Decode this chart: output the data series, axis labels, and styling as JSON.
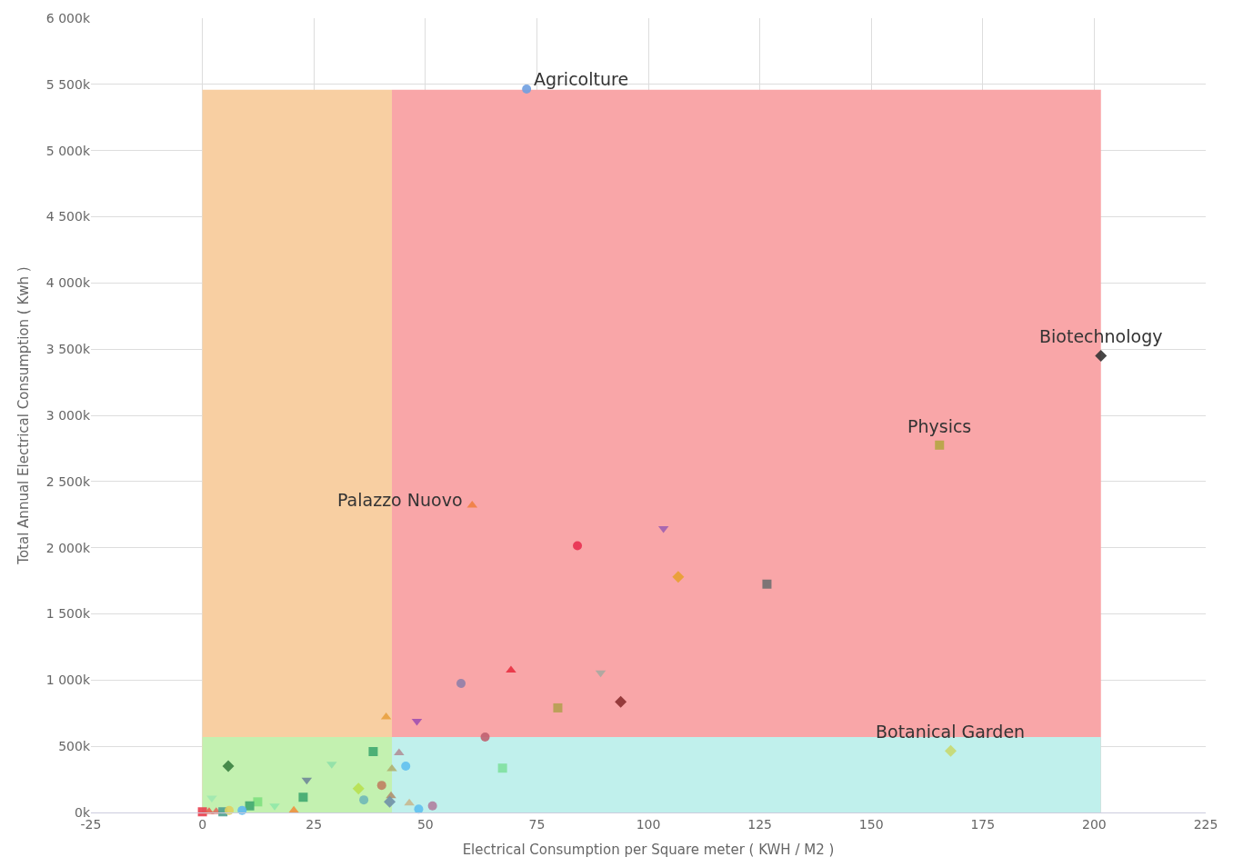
{
  "chart_data": {
    "type": "scatter",
    "xlabel": "Electrical Consumption per Square meter ( KWH / M2 )",
    "ylabel": "Total Annual Electrical Consumption ( Kwh )",
    "xlim": [
      -25,
      225
    ],
    "xticks": [
      -25,
      0,
      25,
      50,
      75,
      100,
      125,
      150,
      175,
      200,
      225
    ],
    "ylim": [
      0,
      6000
    ],
    "yticks": [
      {
        "value": 0,
        "label": "0k"
      },
      {
        "value": 500,
        "label": "500k"
      },
      {
        "value": 1000,
        "label": "1 000k"
      },
      {
        "value": 1500,
        "label": "1 500k"
      },
      {
        "value": 2000,
        "label": "2 000k"
      },
      {
        "value": 2500,
        "label": "2 500k"
      },
      {
        "value": 3000,
        "label": "3 000k"
      },
      {
        "value": 3500,
        "label": "3 500k"
      },
      {
        "value": 4000,
        "label": "4 000k"
      },
      {
        "value": 4500,
        "label": "4 500k"
      },
      {
        "value": 5000,
        "label": "5 000k"
      },
      {
        "value": 5500,
        "label": "5 500k"
      },
      {
        "value": 6000,
        "label": "6 000k"
      }
    ],
    "grid": true,
    "annotations": [
      {
        "text": "Agricolture",
        "x": 72.7,
        "y": 5465
      },
      {
        "text": "Biotechnology",
        "x": 201.5,
        "y": 3450
      },
      {
        "text": "Physics",
        "x": 165.3,
        "y": 2775
      },
      {
        "text": "Palazzo Nuovo",
        "x": 60.5,
        "y": 2320
      },
      {
        "text": "Botanical Garden",
        "x": 167.8,
        "y": 465
      }
    ],
    "series": [
      {
        "type": "area",
        "x": [
          0,
          42.5
        ],
        "values": [
          5460,
          5460
        ],
        "color": "#f8cfa2"
      },
      {
        "type": "area",
        "x": [
          42.5,
          201.5
        ],
        "values": [
          5460,
          5460
        ],
        "color": "#f9a6a8"
      },
      {
        "type": "area",
        "x": [
          0,
          42.5
        ],
        "values": [
          570,
          570
        ],
        "color": "#c3f1b0"
      },
      {
        "type": "area",
        "x": [
          42.5,
          201.5
        ],
        "values": [
          570,
          570
        ],
        "color": "#c0f0ec"
      },
      {
        "x": [
          72.7
        ],
        "values": [
          5465
        ],
        "color": "#6f9fe0",
        "marker": "circle"
      },
      {
        "x": [
          201.5
        ],
        "values": [
          3450
        ],
        "color": "#333333",
        "marker": "diamond"
      },
      {
        "x": [
          165.3
        ],
        "values": [
          2775
        ],
        "color": "#b5a642",
        "marker": "square"
      },
      {
        "x": [
          60.5
        ],
        "values": [
          2320
        ],
        "color": "#f08040",
        "marker": "triangle"
      },
      {
        "x": [
          167.8
        ],
        "values": [
          465
        ],
        "color": "#c8d870",
        "marker": "diamond"
      },
      {
        "x": [
          103.4
        ],
        "values": [
          2145
        ],
        "color": "#a060b0",
        "marker": "triangle-down"
      },
      {
        "x": [
          84.1
        ],
        "values": [
          2015
        ],
        "color": "#e83050",
        "marker": "circle"
      },
      {
        "x": [
          106.7
        ],
        "values": [
          1780
        ],
        "color": "#e8a030",
        "marker": "diamond"
      },
      {
        "x": [
          126.6
        ],
        "values": [
          1725
        ],
        "color": "#707070",
        "marker": "square"
      },
      {
        "x": [
          69.2
        ],
        "values": [
          1075
        ],
        "color": "#e83040",
        "marker": "triangle"
      },
      {
        "x": [
          89.3
        ],
        "values": [
          1055
        ],
        "color": "#a8a8a0",
        "marker": "triangle-down"
      },
      {
        "x": [
          58.0
        ],
        "values": [
          975
        ],
        "color": "#9080a8",
        "marker": "circle"
      },
      {
        "x": [
          93.8
        ],
        "values": [
          835
        ],
        "color": "#8b3030",
        "marker": "diamond"
      },
      {
        "x": [
          79.7
        ],
        "values": [
          790
        ],
        "color": "#b5a050",
        "marker": "square"
      },
      {
        "x": [
          41.2
        ],
        "values": [
          720
        ],
        "color": "#e8a040",
        "marker": "triangle"
      },
      {
        "x": [
          48.1
        ],
        "values": [
          690
        ],
        "color": "#a050b0",
        "marker": "triangle-down"
      },
      {
        "x": [
          63.4
        ],
        "values": [
          570
        ],
        "color": "#c06070",
        "marker": "circle"
      },
      {
        "x": [
          67.3
        ],
        "values": [
          335
        ],
        "color": "#80e0a0",
        "marker": "square"
      },
      {
        "x": [
          38.3
        ],
        "values": [
          460
        ],
        "color": "#40a870",
        "marker": "square"
      },
      {
        "x": [
          44.1
        ],
        "values": [
          450
        ],
        "color": "#b09098",
        "marker": "triangle"
      },
      {
        "x": [
          42.5
        ],
        "values": [
          330
        ],
        "color": "#b0b070",
        "marker": "triangle"
      },
      {
        "x": [
          45.6
        ],
        "values": [
          350
        ],
        "color": "#60c0f0",
        "marker": "circle"
      },
      {
        "x": [
          5.8
        ],
        "values": [
          350
        ],
        "color": "#3a8040",
        "marker": "diamond"
      },
      {
        "x": [
          29.0
        ],
        "values": [
          365
        ],
        "color": "#90e0a8",
        "marker": "triangle-down"
      },
      {
        "x": [
          23.4
        ],
        "values": [
          245
        ],
        "color": "#708898",
        "marker": "triangle-down"
      },
      {
        "x": [
          35.0
        ],
        "values": [
          180
        ],
        "color": "#b8e050",
        "marker": "diamond"
      },
      {
        "x": [
          40.2
        ],
        "values": [
          205
        ],
        "color": "#c08060",
        "marker": "circle"
      },
      {
        "x": [
          22.6
        ],
        "values": [
          115
        ],
        "color": "#40a870",
        "marker": "square"
      },
      {
        "x": [
          36.2
        ],
        "values": [
          95
        ],
        "color": "#70b8b8",
        "marker": "circle"
      },
      {
        "x": [
          42.3
        ],
        "values": [
          125
        ],
        "color": "#b09070",
        "marker": "triangle"
      },
      {
        "x": [
          42.0
        ],
        "values": [
          80
        ],
        "color": "#7090a8",
        "marker": "diamond"
      },
      {
        "x": [
          46.4
        ],
        "values": [
          70
        ],
        "color": "#c8b890",
        "marker": "triangle"
      },
      {
        "x": [
          48.5
        ],
        "values": [
          25
        ],
        "color": "#60c0f0",
        "marker": "circle"
      },
      {
        "x": [
          51.6
        ],
        "values": [
          50
        ],
        "color": "#b080a0",
        "marker": "circle"
      },
      {
        "x": [
          20.5
        ],
        "values": [
          15
        ],
        "color": "#f09040",
        "marker": "triangle"
      },
      {
        "x": [
          16.2
        ],
        "values": [
          50
        ],
        "color": "#90e8a8",
        "marker": "triangle-down"
      },
      {
        "x": [
          12.4
        ],
        "values": [
          80
        ],
        "color": "#80e080",
        "marker": "square"
      },
      {
        "x": [
          10.6
        ],
        "values": [
          50
        ],
        "color": "#40a870",
        "marker": "square"
      },
      {
        "x": [
          8.9
        ],
        "values": [
          15
        ],
        "color": "#60b8f0",
        "marker": "circle"
      },
      {
        "x": [
          2.1
        ],
        "values": [
          110
        ],
        "color": "#a0e8b0",
        "marker": "triangle-down"
      },
      {
        "x": [
          0.0
        ],
        "values": [
          5
        ],
        "color": "#e84050",
        "marker": "square"
      },
      {
        "x": [
          1.5
        ],
        "values": [
          5
        ],
        "color": "#e86050",
        "marker": "triangle"
      },
      {
        "x": [
          3.1
        ],
        "values": [
          5
        ],
        "color": "#e07060",
        "marker": "triangle"
      },
      {
        "x": [
          4.6
        ],
        "values": [
          5
        ],
        "color": "#50a090",
        "marker": "square"
      },
      {
        "x": [
          6.0
        ],
        "values": [
          15
        ],
        "color": "#e0d060",
        "marker": "circle"
      }
    ]
  }
}
